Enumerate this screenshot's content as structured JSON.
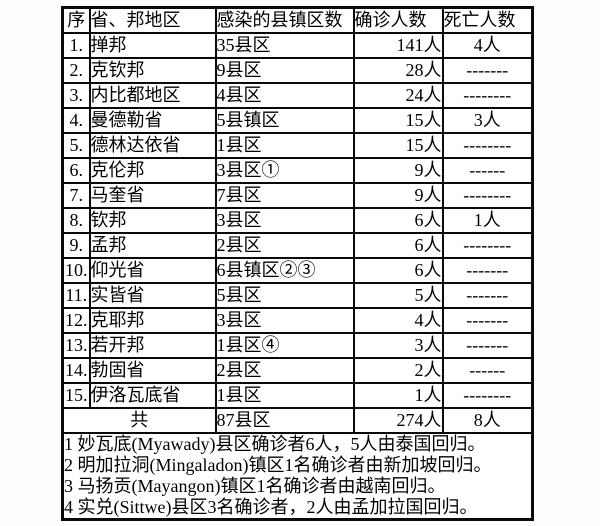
{
  "table": {
    "headers": {
      "seq": "序",
      "region": "省、邦地区",
      "infected": "感染的县镇区数",
      "confirmed": "确诊人数",
      "deaths": "死亡人数"
    },
    "rows": [
      {
        "seq": "1.",
        "region": "掸邦",
        "infected": "35县区",
        "confirmed": "141人",
        "deaths": "4人"
      },
      {
        "seq": "2.",
        "region": "克钦邦",
        "infected": "  9县区",
        "confirmed": "28人",
        "deaths": "-------"
      },
      {
        "seq": "3.",
        "region": "内比都地区",
        "infected": "  4县区",
        "confirmed": "24人",
        "deaths": "--------"
      },
      {
        "seq": "4.",
        "region": "曼德勒省",
        "infected": "  5县镇区",
        "confirmed": "15人",
        "deaths": "3人"
      },
      {
        "seq": "5.",
        "region": "德林达依省",
        "infected": "  1县区",
        "confirmed": "15人",
        "deaths": "--------"
      },
      {
        "seq": "6.",
        "region": "克伦邦",
        "infected": "  3县区①",
        "confirmed": "9人",
        "deaths": "------"
      },
      {
        "seq": "7.",
        "region": "马奎省",
        "infected": "  7县区",
        "confirmed": "9人",
        "deaths": "--------"
      },
      {
        "seq": "8.",
        "region": "钦邦",
        "infected": "  3县区",
        "confirmed": "6人",
        "deaths": "1人"
      },
      {
        "seq": "9.",
        "region": "孟邦",
        "infected": "  2县区",
        "confirmed": "6人",
        "deaths": "--------"
      },
      {
        "seq": "10.",
        "region": "仰光省",
        "infected": "  6县镇区②③",
        "confirmed": "6人",
        "deaths": "-------"
      },
      {
        "seq": "11.",
        "region": "实皆省",
        "infected": "  5县区",
        "confirmed": "5人",
        "deaths": "-------"
      },
      {
        "seq": "12.",
        "region": "克耶邦",
        "infected": "  3县区",
        "confirmed": "4人",
        "deaths": "-------"
      },
      {
        "seq": "13.",
        "region": "若开邦",
        "infected": "  1县区④",
        "confirmed": "3人",
        "deaths": "-------"
      },
      {
        "seq": "14.",
        "region": "勃固省",
        "infected": "  2县区",
        "confirmed": "2人",
        "deaths": "------"
      },
      {
        "seq": "15.",
        "region": "伊洛瓦底省",
        "infected": "  1县区",
        "confirmed": "1人",
        "deaths": "--------"
      }
    ],
    "total": {
      "label": "共",
      "infected": "87县区",
      "confirmed": "274人",
      "deaths": "8人"
    },
    "notes": [
      "1 妙瓦底(Myawady)县区确诊者6人，5人由泰国回归。",
      "2 明加拉洞(Mingaladon)镇区1名确诊者由新加坡回归。",
      "3 马扬贡(Mayangon)镇区1名确诊者由越南回归。",
      "4 实兑(Sittwe)县区3名确诊者，2人由孟加拉国回归。"
    ]
  }
}
